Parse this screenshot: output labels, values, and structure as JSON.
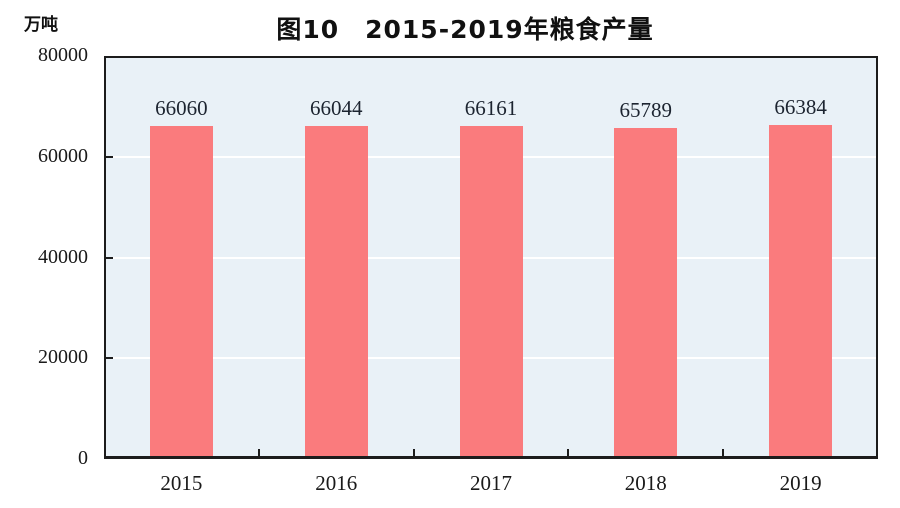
{
  "chart_data": {
    "type": "bar",
    "title": "图10　2015-2019年粮食产量",
    "unit_label": "万吨",
    "categories": [
      "2015",
      "2016",
      "2017",
      "2018",
      "2019"
    ],
    "values": [
      66060,
      66044,
      66161,
      65789,
      66384
    ],
    "value_labels": [
      "66060",
      "66044",
      "66161",
      "65789",
      "66384"
    ],
    "ylabel": "万吨",
    "xlabel": "",
    "ylim": [
      0,
      80000
    ],
    "y_ticks": [
      0,
      20000,
      40000,
      60000,
      80000
    ],
    "y_tick_labels": [
      "0",
      "20000",
      "40000",
      "60000",
      "80000"
    ],
    "grid": "horizontal",
    "legend": "none",
    "colors": {
      "bar": "#fa7b7d",
      "plot_background": "#e9f1f7",
      "gridline": "#ffffff",
      "axis": "#1c1c1c",
      "text": "#1a1a1a"
    }
  }
}
